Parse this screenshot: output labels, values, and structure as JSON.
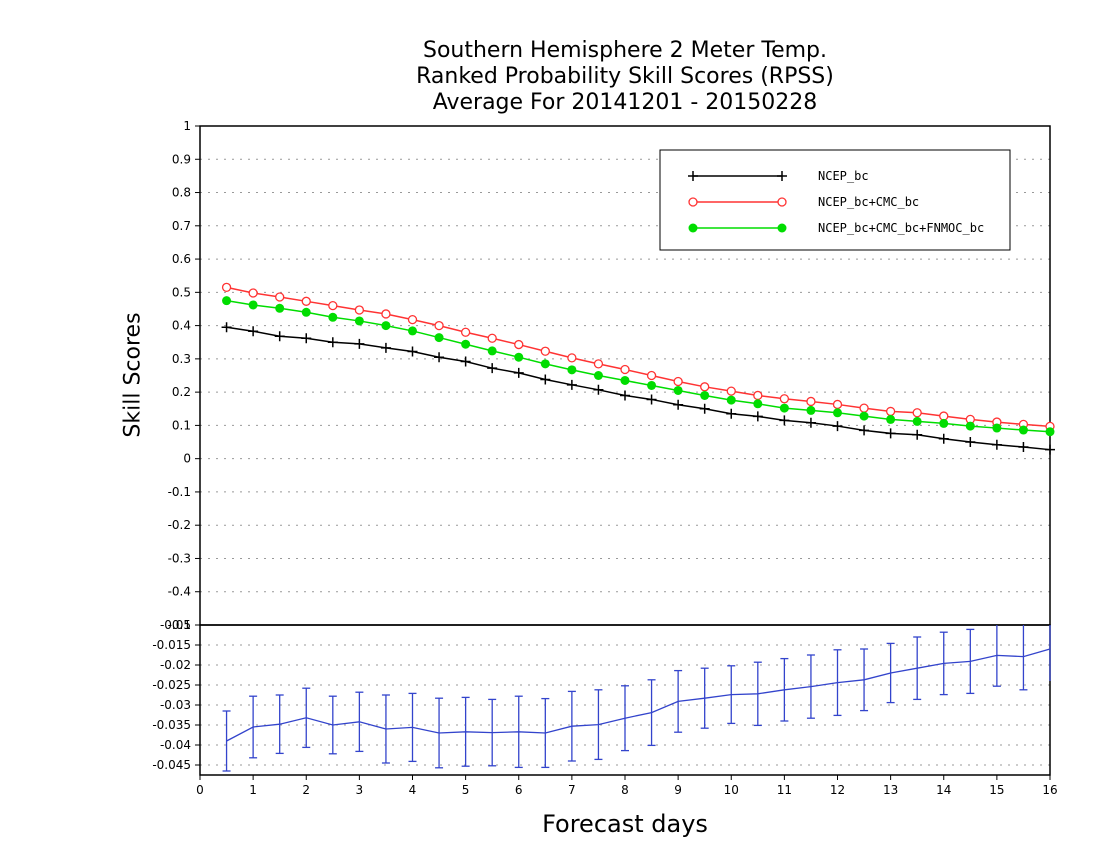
{
  "chart_data": [
    {
      "type": "line",
      "title": [
        "Southern Hemisphere 2 Meter Temp.",
        "Ranked Probability Skill Scores (RPSS)",
        "Average For 20141201 - 20150228"
      ],
      "ylabel": "Skill Scores",
      "xlabel": "Forecast days",
      "xlim": [
        0,
        16
      ],
      "ylim": [
        -0.5,
        1
      ],
      "yticks": [
        "1",
        "0.9",
        "0.8",
        "0.7",
        "0.6",
        "0.5",
        "0.4",
        "0.3",
        "0.2",
        "0.1",
        "0",
        "-0.1",
        "-0.2",
        "-0.3",
        "-0.4",
        "-0.5"
      ],
      "xticks": [
        "0",
        "1",
        "2",
        "3",
        "4",
        "5",
        "6",
        "7",
        "8",
        "9",
        "10",
        "11",
        "12",
        "13",
        "14",
        "15",
        "16"
      ],
      "grid": true,
      "legend_position": "top-right",
      "x": [
        0.5,
        1.0,
        1.5,
        2.0,
        2.5,
        3.0,
        3.5,
        4.0,
        4.5,
        5.0,
        5.5,
        6.0,
        6.5,
        7.0,
        7.5,
        8.0,
        8.5,
        9.0,
        9.5,
        10.0,
        10.5,
        11.0,
        11.5,
        12.0,
        12.5,
        13.0,
        13.5,
        14.0,
        14.5,
        15.0,
        15.5,
        16.0
      ],
      "series": [
        {
          "name": "NCEP_bc",
          "color": "#000000",
          "marker": "plus",
          "values": [
            0.395,
            0.383,
            0.368,
            0.362,
            0.35,
            0.345,
            0.333,
            0.322,
            0.305,
            0.292,
            0.272,
            0.258,
            0.238,
            0.222,
            0.207,
            0.19,
            0.178,
            0.162,
            0.15,
            0.135,
            0.127,
            0.115,
            0.108,
            0.098,
            0.085,
            0.076,
            0.072,
            0.06,
            0.05,
            0.042,
            0.035,
            0.027
          ]
        },
        {
          "name": "NCEP_bc+CMC_bc",
          "color": "#ff3333",
          "marker": "open-circle",
          "values": [
            0.515,
            0.498,
            0.486,
            0.473,
            0.46,
            0.447,
            0.435,
            0.418,
            0.4,
            0.38,
            0.362,
            0.343,
            0.323,
            0.303,
            0.285,
            0.268,
            0.25,
            0.232,
            0.216,
            0.203,
            0.19,
            0.18,
            0.172,
            0.163,
            0.152,
            0.142,
            0.138,
            0.128,
            0.118,
            0.11,
            0.103,
            0.097
          ]
        },
        {
          "name": "NCEP_bc+CMC_bc+FNMOC_bc",
          "color": "#00dd00",
          "marker": "filled-circle",
          "values": [
            0.475,
            0.462,
            0.452,
            0.44,
            0.425,
            0.414,
            0.4,
            0.384,
            0.364,
            0.344,
            0.324,
            0.305,
            0.285,
            0.267,
            0.25,
            0.235,
            0.22,
            0.205,
            0.19,
            0.176,
            0.165,
            0.152,
            0.145,
            0.138,
            0.128,
            0.118,
            0.112,
            0.106,
            0.098,
            0.092,
            0.086,
            0.081
          ]
        }
      ]
    },
    {
      "type": "line",
      "xlim": [
        0,
        16
      ],
      "ylim": [
        -0.0475,
        -0.01
      ],
      "yticks": [
        "-0.01",
        "-0.015",
        "-0.02",
        "-0.025",
        "-0.03",
        "-0.035",
        "-0.04",
        "-0.045"
      ],
      "xticks": [
        "0",
        "1",
        "2",
        "3",
        "4",
        "5",
        "6",
        "7",
        "8",
        "9",
        "10",
        "11",
        "12",
        "13",
        "14",
        "15",
        "16"
      ],
      "grid": true,
      "x": [
        0.5,
        1.0,
        1.5,
        2.0,
        2.5,
        3.0,
        3.5,
        4.0,
        4.5,
        5.0,
        5.5,
        6.0,
        6.5,
        7.0,
        7.5,
        8.0,
        8.5,
        9.0,
        9.5,
        10.0,
        10.5,
        11.0,
        11.5,
        12.0,
        12.5,
        13.0,
        13.5,
        14.0,
        14.5,
        15.0,
        15.5,
        16.0
      ],
      "series": [
        {
          "color": "#3344cc",
          "values": [
            -0.039,
            -0.0355,
            -0.0348,
            -0.0332,
            -0.035,
            -0.0342,
            -0.036,
            -0.0356,
            -0.037,
            -0.0367,
            -0.0369,
            -0.0367,
            -0.037,
            -0.0353,
            -0.0349,
            -0.0333,
            -0.0319,
            -0.0291,
            -0.0283,
            -0.0274,
            -0.0272,
            -0.0262,
            -0.0254,
            -0.0244,
            -0.0237,
            -0.022,
            -0.0208,
            -0.0196,
            -0.0191,
            -0.0176,
            -0.0179,
            -0.016
          ],
          "error": [
            0.0075,
            0.0077,
            0.0073,
            0.0074,
            0.0072,
            0.0074,
            0.0085,
            0.0085,
            0.0087,
            0.0086,
            0.0083,
            0.0089,
            0.0086,
            0.0087,
            0.0087,
            0.0081,
            0.0082,
            0.0077,
            0.0075,
            0.0072,
            0.0079,
            0.0078,
            0.0079,
            0.0082,
            0.0077,
            0.0074,
            0.0078,
            0.0078,
            0.008,
            0.0077,
            0.0083,
            0.008
          ]
        }
      ]
    }
  ]
}
